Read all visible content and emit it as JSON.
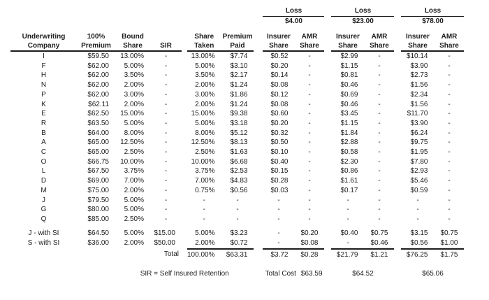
{
  "loss_sections": [
    {
      "label": "Loss",
      "amount": "$4.00"
    },
    {
      "label": "Loss",
      "amount": "$23.00"
    },
    {
      "label": "Loss",
      "amount": "$78.00"
    }
  ],
  "columns": {
    "company": [
      "Underwriting",
      "Company"
    ],
    "premium": [
      "100%",
      "Premium"
    ],
    "bound": [
      "Bound",
      "Share"
    ],
    "sir": [
      "",
      "SIR"
    ],
    "taken": [
      "Share",
      "Taken"
    ],
    "paid": [
      "Premium",
      "Paid"
    ],
    "insurer": [
      "Insurer",
      "Share"
    ],
    "amr": [
      "AMR",
      "Share"
    ]
  },
  "rows": [
    {
      "company": "I",
      "premium": "$59.50",
      "bound": "13.00%",
      "sir": "-",
      "taken": "13.00%",
      "paid": "$7.74",
      "ins1": "$0.52",
      "amr1": "-",
      "ins2": "$2.99",
      "amr2": "-",
      "ins3": "$10.14",
      "amr3": "-"
    },
    {
      "company": "F",
      "premium": "$62.00",
      "bound": "5.00%",
      "sir": "-",
      "taken": "5.00%",
      "paid": "$3.10",
      "ins1": "$0.20",
      "amr1": "-",
      "ins2": "$1.15",
      "amr2": "-",
      "ins3": "$3.90",
      "amr3": "-"
    },
    {
      "company": "H",
      "premium": "$62.00",
      "bound": "3.50%",
      "sir": "-",
      "taken": "3.50%",
      "paid": "$2.17",
      "ins1": "$0.14",
      "amr1": "-",
      "ins2": "$0.81",
      "amr2": "-",
      "ins3": "$2.73",
      "amr3": "-"
    },
    {
      "company": "N",
      "premium": "$62.00",
      "bound": "2.00%",
      "sir": "-",
      "taken": "2.00%",
      "paid": "$1.24",
      "ins1": "$0.08",
      "amr1": "-",
      "ins2": "$0.46",
      "amr2": "-",
      "ins3": "$1.56",
      "amr3": "-"
    },
    {
      "company": "P",
      "premium": "$62.00",
      "bound": "3.00%",
      "sir": "-",
      "taken": "3.00%",
      "paid": "$1.86",
      "ins1": "$0.12",
      "amr1": "-",
      "ins2": "$0.69",
      "amr2": "-",
      "ins3": "$2.34",
      "amr3": "-"
    },
    {
      "company": "K",
      "premium": "$62.11",
      "bound": "2.00%",
      "sir": "-",
      "taken": "2.00%",
      "paid": "$1.24",
      "ins1": "$0.08",
      "amr1": "-",
      "ins2": "$0.46",
      "amr2": "-",
      "ins3": "$1.56",
      "amr3": "-"
    },
    {
      "company": "E",
      "premium": "$62.50",
      "bound": "15.00%",
      "sir": "-",
      "taken": "15.00%",
      "paid": "$9.38",
      "ins1": "$0.60",
      "amr1": "-",
      "ins2": "$3.45",
      "amr2": "-",
      "ins3": "$11.70",
      "amr3": "-"
    },
    {
      "company": "R",
      "premium": "$63.50",
      "bound": "5.00%",
      "sir": "-",
      "taken": "5.00%",
      "paid": "$3.18",
      "ins1": "$0.20",
      "amr1": "-",
      "ins2": "$1.15",
      "amr2": "-",
      "ins3": "$3.90",
      "amr3": "-"
    },
    {
      "company": "B",
      "premium": "$64.00",
      "bound": "8.00%",
      "sir": "-",
      "taken": "8.00%",
      "paid": "$5.12",
      "ins1": "$0.32",
      "amr1": "-",
      "ins2": "$1.84",
      "amr2": "-",
      "ins3": "$6.24",
      "amr3": "-"
    },
    {
      "company": "A",
      "premium": "$65.00",
      "bound": "12.50%",
      "sir": "-",
      "taken": "12.50%",
      "paid": "$8.13",
      "ins1": "$0.50",
      "amr1": "-",
      "ins2": "$2.88",
      "amr2": "-",
      "ins3": "$9.75",
      "amr3": "-"
    },
    {
      "company": "C",
      "premium": "$65.00",
      "bound": "2.50%",
      "sir": "-",
      "taken": "2.50%",
      "paid": "$1.63",
      "ins1": "$0.10",
      "amr1": "-",
      "ins2": "$0.58",
      "amr2": "-",
      "ins3": "$1.95",
      "amr3": "-"
    },
    {
      "company": "O",
      "premium": "$66.75",
      "bound": "10.00%",
      "sir": "-",
      "taken": "10.00%",
      "paid": "$6.68",
      "ins1": "$0.40",
      "amr1": "-",
      "ins2": "$2.30",
      "amr2": "-",
      "ins3": "$7.80",
      "amr3": "-"
    },
    {
      "company": "L",
      "premium": "$67.50",
      "bound": "3.75%",
      "sir": "-",
      "taken": "3.75%",
      "paid": "$2.53",
      "ins1": "$0.15",
      "amr1": "-",
      "ins2": "$0.86",
      "amr2": "-",
      "ins3": "$2.93",
      "amr3": "-"
    },
    {
      "company": "D",
      "premium": "$69.00",
      "bound": "7.00%",
      "sir": "-",
      "taken": "7.00%",
      "paid": "$4.83",
      "ins1": "$0.28",
      "amr1": "-",
      "ins2": "$1.61",
      "amr2": "-",
      "ins3": "$5.46",
      "amr3": "-"
    },
    {
      "company": "M",
      "premium": "$75.00",
      "bound": "2.00%",
      "sir": "-",
      "taken": "0.75%",
      "paid": "$0.56",
      "ins1": "$0.03",
      "amr1": "-",
      "ins2": "$0.17",
      "amr2": "-",
      "ins3": "$0.59",
      "amr3": "-"
    },
    {
      "company": "J",
      "premium": "$79.50",
      "bound": "5.00%",
      "sir": "-",
      "taken": "-",
      "paid": "-",
      "ins1": "-",
      "amr1": "-",
      "ins2": "-",
      "amr2": "-",
      "ins3": "-",
      "amr3": "-"
    },
    {
      "company": "G",
      "premium": "$80.00",
      "bound": "5.00%",
      "sir": "-",
      "taken": "-",
      "paid": "-",
      "ins1": "-",
      "amr1": "-",
      "ins2": "-",
      "amr2": "-",
      "ins3": "-",
      "amr3": "-"
    },
    {
      "company": "Q",
      "premium": "$85.00",
      "bound": "2.50%",
      "sir": "-",
      "taken": "-",
      "paid": "-",
      "ins1": "-",
      "amr1": "-",
      "ins2": "-",
      "amr2": "-",
      "ins3": "-",
      "amr3": "-"
    }
  ],
  "si_rows": [
    {
      "company": "J - with SI",
      "premium": "$64.50",
      "bound": "5.00%",
      "sir": "$15.00",
      "taken": "5.00%",
      "paid": "$3.23",
      "ins1": "-",
      "amr1": "$0.20",
      "ins2": "$0.40",
      "amr2": "$0.75",
      "ins3": "$3.15",
      "amr3": "$0.75"
    },
    {
      "company": "S - with SI",
      "premium": "$36.00",
      "bound": "2.00%",
      "sir": "$50.00",
      "taken": "2.00%",
      "paid": "$0.72",
      "ins1": "-",
      "amr1": "$0.08",
      "ins2": "-",
      "amr2": "$0.46",
      "ins3": "$0.56",
      "amr3": "$1.00"
    }
  ],
  "total_row": {
    "label": "Total",
    "taken": "100.00%",
    "paid": "$63.31",
    "ins1": "$3.72",
    "amr1": "$0.28",
    "ins2": "$21.79",
    "amr2": "$1.21",
    "ins3": "$76.25",
    "amr3": "$1.75"
  },
  "footer": {
    "sir_note": "SIR = Self Insured Retention",
    "total_cost_label": "Total Cost",
    "total_costs": [
      "$63.59",
      "$64.52",
      "$65.06"
    ]
  }
}
